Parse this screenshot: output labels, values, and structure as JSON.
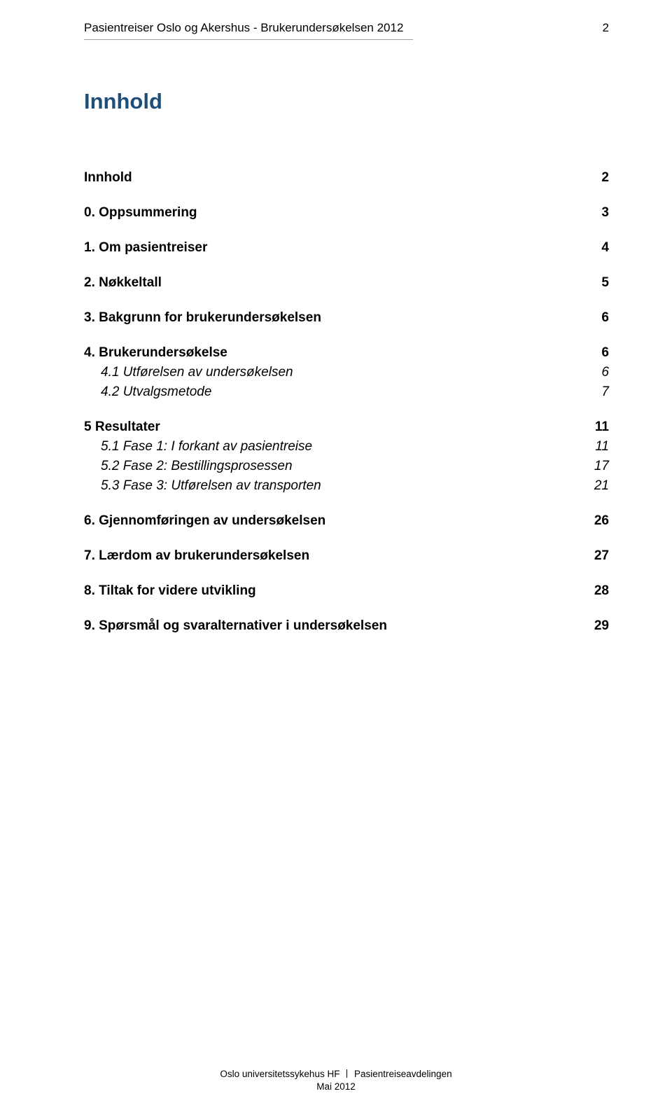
{
  "header": {
    "title": "Pasientreiser Oslo og Akershus - Brukerundersøkelsen 2012",
    "page_number": "2"
  },
  "heading": "Innhold",
  "toc": [
    {
      "style": "bold",
      "label": "Innhold",
      "page": "2",
      "spacer": "lg"
    },
    {
      "style": "bold",
      "label": "0. Oppsummering",
      "page": "3",
      "spacer": "lg"
    },
    {
      "style": "bold",
      "label": "1. Om pasientreiser",
      "page": "4",
      "spacer": "lg"
    },
    {
      "style": "bold",
      "label": "2. Nøkkeltall",
      "page": "5",
      "spacer": "lg"
    },
    {
      "style": "bold",
      "label": "3. Bakgrunn for brukerundersøkelsen",
      "page": "6",
      "spacer": "lg"
    },
    {
      "style": "bold",
      "label": "4. Brukerundersøkelse",
      "page": "6",
      "spacer": "sm"
    },
    {
      "style": "italic",
      "label": "4.1 Utførelsen av undersøkelsen",
      "page": "6",
      "spacer": "sm"
    },
    {
      "style": "italic",
      "label": "4.2 Utvalgsmetode",
      "page": "7",
      "spacer": "lg"
    },
    {
      "style": "bold",
      "label": "5 Resultater",
      "page": "11",
      "spacer": "sm"
    },
    {
      "style": "italic",
      "label": "5.1 Fase 1: I forkant av pasientreise",
      "page": "11",
      "spacer": "sm"
    },
    {
      "style": "italic",
      "label": "5.2 Fase 2: Bestillingsprosessen",
      "page": "17",
      "spacer": "sm"
    },
    {
      "style": "italic",
      "label": "5.3 Fase 3: Utførelsen av transporten",
      "page": "21",
      "spacer": "lg"
    },
    {
      "style": "bold",
      "label": "6. Gjennomføringen av undersøkelsen",
      "page": "26",
      "spacer": "lg"
    },
    {
      "style": "bold",
      "label": "7. Lærdom av brukerundersøkelsen",
      "page": "27",
      "spacer": "lg"
    },
    {
      "style": "bold",
      "label": "8. Tiltak for videre utvikling",
      "page": "28",
      "spacer": "lg"
    },
    {
      "style": "bold",
      "label": "9. Spørsmål og svaralternativer i undersøkelsen",
      "page": "29",
      "spacer": ""
    }
  ],
  "footer": {
    "line1_left": "Oslo universitetssykehus HF",
    "line1_right": "Pasientreiseavdelingen",
    "line2": "Mai 2012"
  }
}
